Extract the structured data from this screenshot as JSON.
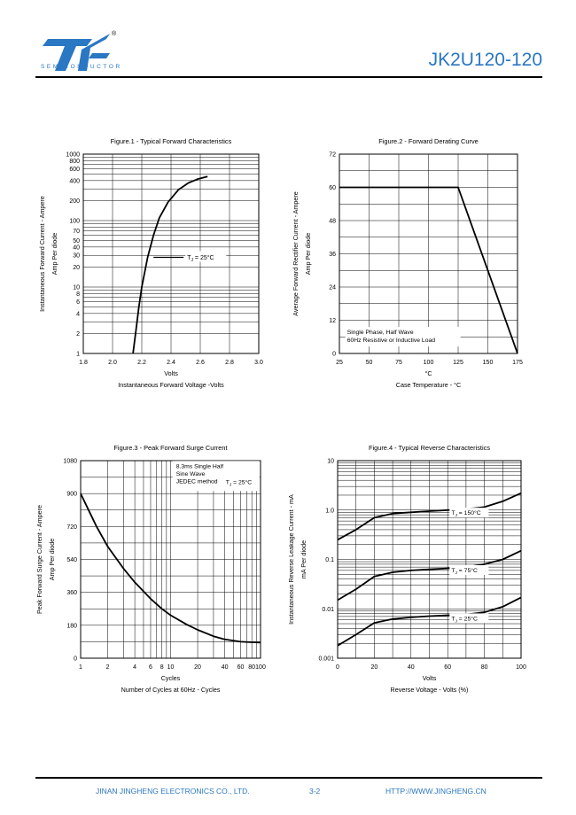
{
  "header": {
    "registered_mark": "®",
    "logo_subtitle": "SEMICONDUCTOR",
    "part_number": "JK2U120-120",
    "brand_color": "#2a77c4"
  },
  "footer": {
    "company": "JINAN JINGHENG ELECTRONICS CO., LTD.",
    "page": "3-2",
    "url": "HTTP://WWW.JINGHENG.CN"
  },
  "chart_data": [
    {
      "id": "fig1",
      "type": "line",
      "title": "Figure.1 - Typical Forward Characteristics",
      "xlabel_units": "Volts",
      "xlabel": "Instantaneous Forward Voltage -Volts",
      "ylabel": "Instantaneous  Forward  Current - Ampere",
      "ylabel2": "Amp   Per diode",
      "xlim": [
        1.8,
        3.0
      ],
      "ylim": [
        1,
        1000
      ],
      "yscale": "log",
      "grid": true,
      "xticks": [
        "1.8",
        "2.0",
        "2.2",
        "2.4",
        "2.6",
        "2.8",
        "3.0"
      ],
      "yticks": [
        "1",
        "2",
        "4",
        "6",
        "8",
        "10",
        "20",
        "30",
        "40",
        "50",
        "70",
        "100",
        "200",
        "400",
        "600",
        "800",
        "1000"
      ],
      "annotation": {
        "prefix": "T",
        "sub": "J",
        "suffix": " = 25°C"
      },
      "series": [
        {
          "x": [
            2.14,
            2.16,
            2.18,
            2.2,
            2.24,
            2.28,
            2.32,
            2.38,
            2.45,
            2.52,
            2.58,
            2.65
          ],
          "y": [
            1,
            2.2,
            5,
            10,
            28,
            60,
            110,
            190,
            290,
            370,
            420,
            460
          ]
        }
      ]
    },
    {
      "id": "fig2",
      "type": "line",
      "title": "Figure.2 - Forward Derating Curve",
      "xlabel_units": "°C",
      "xlabel": "Case Temperature - °C",
      "ylabel": "Average  Forward  Rectifier  Current - Ampere",
      "ylabel2": "Amp   Per diode",
      "xlim": [
        25,
        175
      ],
      "ylim": [
        0,
        72
      ],
      "grid": true,
      "xticks": [
        "25",
        "50",
        "75",
        "100",
        "125",
        "150",
        "175"
      ],
      "yticks": [
        "0",
        "12",
        "24",
        "36",
        "48",
        "60",
        "72"
      ],
      "annotation_lines": [
        "Single Phase, Half Wave",
        "60Hz Resistive or Inductive Load"
      ],
      "series": [
        {
          "x": [
            25,
            125,
            175
          ],
          "y": [
            60,
            60,
            0
          ]
        }
      ]
    },
    {
      "id": "fig3",
      "type": "line",
      "title": "Figure.3 - Peak Forward Surge Current",
      "xlabel_units": "Cycles",
      "xlabel": "Number of Cycles at 60Hz - Cycles",
      "ylabel": "Peak Forward Surge Current - Ampere",
      "ylabel2": "Amp   Per diode",
      "xlim": [
        1,
        100
      ],
      "xscale": "log",
      "ylim": [
        0,
        1080
      ],
      "grid": true,
      "xticks": [
        "1",
        "2",
        "4",
        "6",
        "8",
        "10",
        "20",
        "40",
        "60",
        "80",
        "100"
      ],
      "yticks": [
        "0",
        "180",
        "360",
        "540",
        "720",
        "900",
        "1080"
      ],
      "annotation_lines": [
        "8.3ms Single Half",
        "Sine Wave",
        "JEDEC method"
      ],
      "annotation_temp": {
        "prefix": "T",
        "sub": "J",
        "suffix": " = 25°C"
      },
      "series": [
        {
          "x": [
            1,
            1.5,
            2,
            3,
            4,
            6,
            8,
            10,
            15,
            20,
            30,
            40,
            60,
            80,
            100
          ],
          "y": [
            900,
            720,
            610,
            490,
            415,
            325,
            270,
            235,
            185,
            155,
            120,
            103,
            90,
            87,
            85
          ]
        }
      ]
    },
    {
      "id": "fig4",
      "type": "line",
      "title": "Figure.4 - Typical Reverse Characteristics",
      "xlabel_units": "Volts",
      "xlabel": "Reverse Voltage - Volts (%)",
      "ylabel": "Instantaneous Reverse Leakage Current - mA",
      "ylabel2": "mA    Per diode",
      "xlim": [
        0,
        100
      ],
      "ylim": [
        0.001,
        10
      ],
      "yscale": "log",
      "grid": true,
      "xticks": [
        "0",
        "20",
        "40",
        "60",
        "80",
        "100"
      ],
      "yticks": [
        "0.001",
        "0.01",
        "0.1",
        "1.0",
        "10"
      ],
      "series": [
        {
          "name": {
            "prefix": "T",
            "sub": "J",
            "suffix": " = 150°C"
          },
          "x": [
            0,
            10,
            20,
            30,
            40,
            50,
            60,
            70,
            80,
            90,
            100
          ],
          "y": [
            0.25,
            0.4,
            0.7,
            0.85,
            0.9,
            0.95,
            1.0,
            1.05,
            1.15,
            1.5,
            2.2
          ]
        },
        {
          "name": {
            "prefix": "T",
            "sub": "J",
            "suffix": " = 75°C"
          },
          "x": [
            0,
            10,
            20,
            30,
            40,
            50,
            60,
            70,
            80,
            90,
            100
          ],
          "y": [
            0.015,
            0.025,
            0.045,
            0.055,
            0.06,
            0.063,
            0.066,
            0.07,
            0.08,
            0.1,
            0.15
          ]
        },
        {
          "name": {
            "prefix": "T",
            "sub": "J",
            "suffix": " = 25°C"
          },
          "x": [
            0,
            10,
            20,
            30,
            40,
            50,
            60,
            70,
            80,
            90,
            100
          ],
          "y": [
            0.0018,
            0.003,
            0.0052,
            0.0062,
            0.0067,
            0.0071,
            0.0074,
            0.0077,
            0.0085,
            0.011,
            0.017
          ]
        }
      ]
    }
  ]
}
